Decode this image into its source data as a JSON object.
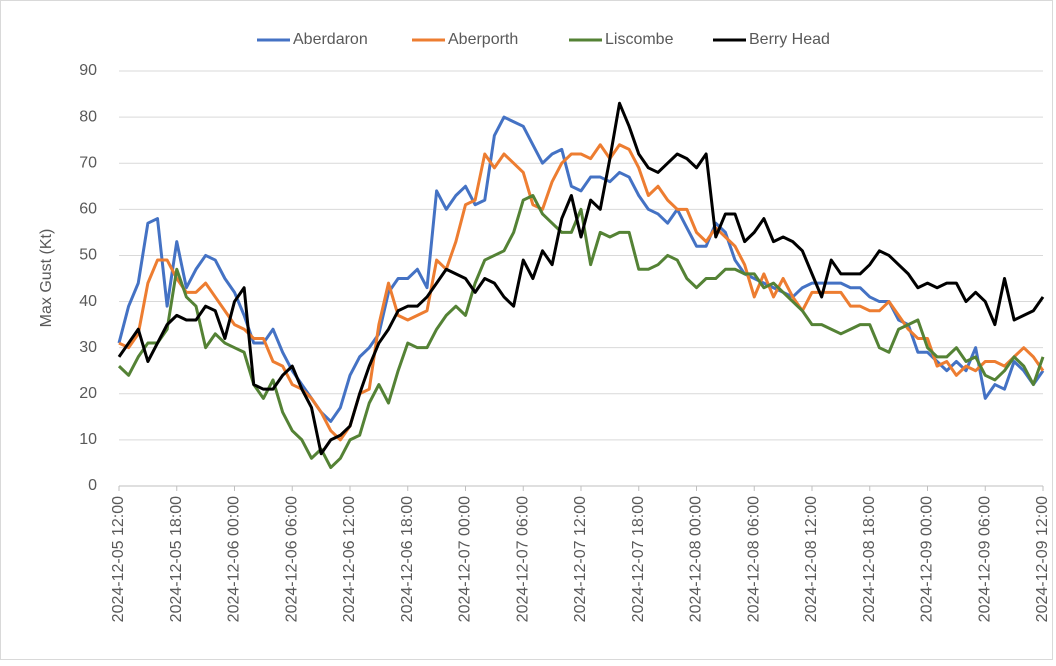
{
  "chart_data": {
    "type": "line",
    "y_label": "Max Gust (Kt)",
    "categories": [
      "2024-12-05 12:00",
      null,
      null,
      null,
      null,
      null,
      "2024-12-05 18:00",
      null,
      null,
      null,
      null,
      null,
      "2024-12-06 00:00",
      null,
      null,
      null,
      null,
      null,
      "2024-12-06 06:00",
      null,
      null,
      null,
      null,
      null,
      "2024-12-06 12:00",
      null,
      null,
      null,
      null,
      null,
      "2024-12-06 18:00",
      null,
      null,
      null,
      null,
      null,
      "2024-12-07 00:00",
      null,
      null,
      null,
      null,
      null,
      "2024-12-07 06:00",
      null,
      null,
      null,
      null,
      null,
      "2024-12-07 12:00",
      null,
      null,
      null,
      null,
      null,
      "2024-12-07 18:00",
      null,
      null,
      null,
      null,
      null,
      "2024-12-08 00:00",
      null,
      null,
      null,
      null,
      null,
      "2024-12-08 06:00",
      null,
      null,
      null,
      null,
      null,
      "2024-12-08 12:00",
      null,
      null,
      null,
      null,
      null,
      "2024-12-08 18:00",
      null,
      null,
      null,
      null,
      null,
      "2024-12-09 00:00",
      null,
      null,
      null,
      null,
      null,
      "2024-12-09 06:00",
      null,
      null,
      null,
      null,
      null,
      "2024-12-09 12:00"
    ],
    "series": [
      {
        "name": "Aberdaron",
        "color": "#4472c4",
        "values": [
          31,
          39,
          44,
          57,
          58,
          39,
          53,
          43,
          47,
          50,
          49,
          45,
          42,
          37,
          31,
          31,
          34,
          29,
          25,
          22,
          19,
          16,
          14,
          17,
          24,
          28,
          30,
          33,
          42,
          45,
          45,
          47,
          43,
          64,
          60,
          63,
          65,
          61,
          62,
          76,
          80,
          79,
          78,
          74,
          70,
          72,
          73,
          65,
          64,
          67,
          67,
          66,
          68,
          67,
          63,
          60,
          59,
          57,
          60,
          56,
          52,
          52,
          57,
          55,
          49,
          46,
          45,
          44,
          43,
          42,
          41,
          43,
          44,
          44,
          44,
          44,
          43,
          43,
          41,
          40,
          40,
          36,
          35,
          29,
          29,
          27,
          25,
          27,
          25,
          30,
          19,
          22,
          21,
          27,
          25,
          22,
          25
        ]
      },
      {
        "name": "Aberporth",
        "color": "#ed7d31",
        "values": [
          31,
          30,
          33,
          44,
          49,
          49,
          45,
          42,
          42,
          44,
          41,
          38,
          35,
          34,
          32,
          32,
          27,
          26,
          22,
          21,
          19,
          16,
          12,
          10,
          13,
          20,
          21,
          35,
          44,
          37,
          36,
          37,
          38,
          49,
          47,
          53,
          61,
          62,
          72,
          69,
          72,
          70,
          68,
          61,
          60,
          66,
          70,
          72,
          72,
          71,
          74,
          71,
          74,
          73,
          69,
          63,
          65,
          62,
          60,
          60,
          55,
          53,
          56,
          54,
          52,
          48,
          41,
          46,
          41,
          45,
          41,
          38,
          42,
          42,
          42,
          42,
          39,
          39,
          38,
          38,
          40,
          37,
          34,
          32,
          32,
          26,
          27,
          24,
          26,
          25,
          27,
          27,
          26,
          28,
          30,
          28,
          25
        ]
      },
      {
        "name": "Liscombe",
        "color": "#548235",
        "values": [
          26,
          24,
          28,
          31,
          31,
          34,
          47,
          41,
          39,
          30,
          33,
          31,
          30,
          29,
          22,
          19,
          23,
          16,
          12,
          10,
          6,
          8,
          4,
          6,
          10,
          11,
          18,
          22,
          18,
          25,
          31,
          30,
          30,
          34,
          37,
          39,
          37,
          44,
          49,
          50,
          51,
          55,
          62,
          63,
          59,
          57,
          55,
          55,
          60,
          48,
          55,
          54,
          55,
          55,
          47,
          47,
          48,
          50,
          49,
          45,
          43,
          45,
          45,
          47,
          47,
          46,
          46,
          43,
          44,
          42,
          40,
          38,
          35,
          35,
          34,
          33,
          34,
          35,
          35,
          30,
          29,
          34,
          35,
          36,
          30,
          28,
          28,
          30,
          27,
          28,
          24,
          23,
          25,
          28,
          26,
          22,
          28
        ]
      },
      {
        "name": "Berry Head",
        "color": "#000000",
        "values": [
          28,
          31,
          34,
          27,
          31,
          35,
          37,
          36,
          36,
          39,
          38,
          32,
          40,
          43,
          22,
          21,
          21,
          24,
          26,
          21,
          17,
          7,
          10,
          11,
          13,
          20,
          26,
          31,
          34,
          38,
          39,
          39,
          41,
          44,
          47,
          46,
          45,
          42,
          45,
          44,
          41,
          39,
          49,
          45,
          51,
          48,
          58,
          63,
          54,
          62,
          60,
          71,
          83,
          78,
          72,
          69,
          68,
          70,
          72,
          71,
          69,
          72,
          54,
          59,
          59,
          53,
          55,
          58,
          53,
          54,
          53,
          51,
          46,
          41,
          49,
          46,
          46,
          46,
          48,
          51,
          50,
          48,
          46,
          43,
          44,
          43,
          44,
          44,
          40,
          42,
          40,
          35,
          45,
          36,
          37,
          38,
          41
        ]
      }
    ],
    "ylim": [
      0,
      90
    ],
    "yticks": [
      0,
      10,
      20,
      30,
      40,
      50,
      60,
      70,
      80,
      90
    ],
    "grid": true,
    "legend": "top"
  }
}
